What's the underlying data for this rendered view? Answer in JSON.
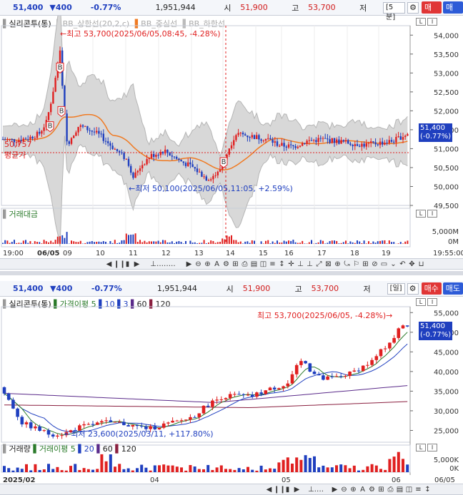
{
  "top": {
    "quote": {
      "price": "51,400",
      "change": "▼400",
      "pct": "-0.77%",
      "volume": "1,951,944",
      "open_label": "시",
      "open": "51,900",
      "high_label": "고",
      "high": "53,700",
      "low_label": "저",
      "period": "[5분]",
      "buy": "매수",
      "sell": "매도"
    },
    "legend": {
      "name": "실리콘투(통)",
      "bb_upper": "BB_상한선(20,2,c)",
      "bb_mid": "BB_중심선",
      "bb_lower": "BB_하한선"
    },
    "annotations": {
      "high": "←최고 53,700(2025/06/05,08:45, -4.28%)",
      "low": "←최저 50,100(2025/06/05,11:05, +2.59%)",
      "avg_value": "50,757",
      "avg_label": "평균가"
    },
    "price_tag": [
      "51,400",
      "(-0.77%)"
    ],
    "y_ticks": [
      "54,000",
      "53,500",
      "53,000",
      "52,500",
      "52,000",
      "51,500",
      "51,000",
      "50,500",
      "50,000",
      "49,500"
    ],
    "vol_legend": "거래대금",
    "vol_ticks": [
      "5,000M",
      "0M"
    ],
    "x_ticks": [
      "19:00",
      "06/05",
      "09",
      "10",
      "11",
      "12",
      "13",
      "14",
      "15",
      "16",
      "17",
      "18",
      "19",
      "19:55:00"
    ],
    "colors": {
      "up": "#e02020",
      "down": "#1f3fbf",
      "mid": "#f07a22",
      "band": "#d3d3d3"
    }
  },
  "bottom": {
    "quote": {
      "price": "51,400",
      "change": "▼400",
      "pct": "-0.77%",
      "volume": "1,951,944",
      "open_label": "시",
      "open": "51,900",
      "high_label": "고",
      "high": "53,700",
      "low_label": "저",
      "period": "[일]",
      "buy": "매수",
      "sell": "매도"
    },
    "legend": {
      "name": "실리콘투(통)",
      "ma": "가격이평",
      "p5": "5",
      "p10": "10",
      "p3": "3",
      "p60": "60",
      "p120": "120"
    },
    "annotations": {
      "high": "최고 53,700(2025/06/05, -4.28%)→",
      "low": "←최저 23,600(2025/03/11, +117.80%)"
    },
    "price_tag": [
      "51,400",
      "(-0.77%)"
    ],
    "y_ticks": [
      "55,000",
      "50,000",
      "45,000",
      "40,000",
      "35,000",
      "30,000",
      "25,000"
    ],
    "vol_legend": {
      "name": "거래량",
      "ma": "거래이평",
      "p5": "5",
      "p20": "20",
      "p60": "60",
      "p120": "120"
    },
    "vol_ticks": [
      "5,000K",
      "0K"
    ],
    "x_ticks": [
      "2025/02",
      "04",
      "05",
      "06",
      "06/05"
    ]
  },
  "chart_data": [
    {
      "type": "candlestick",
      "title": "실리콘투(통) 5분",
      "ylim": [
        49500,
        54250
      ],
      "series": [
        {
          "name": "BB_상한선(20,2,c)"
        },
        {
          "name": "BB_중심선"
        },
        {
          "name": "BB_하한선"
        }
      ],
      "x": [
        "06/05 09",
        "10",
        "11",
        "12",
        "13",
        "14",
        "15",
        "16",
        "17",
        "18",
        "19"
      ],
      "high": 53700,
      "low": 50100,
      "avg": 50757,
      "last": 51400
    },
    {
      "type": "candlestick",
      "title": "실리콘투(통) 일",
      "ylim": [
        22000,
        56500
      ],
      "x": [
        "2025/02",
        "04",
        "05",
        "06"
      ],
      "high": 53700,
      "low": 23600,
      "last": 51400
    }
  ]
}
